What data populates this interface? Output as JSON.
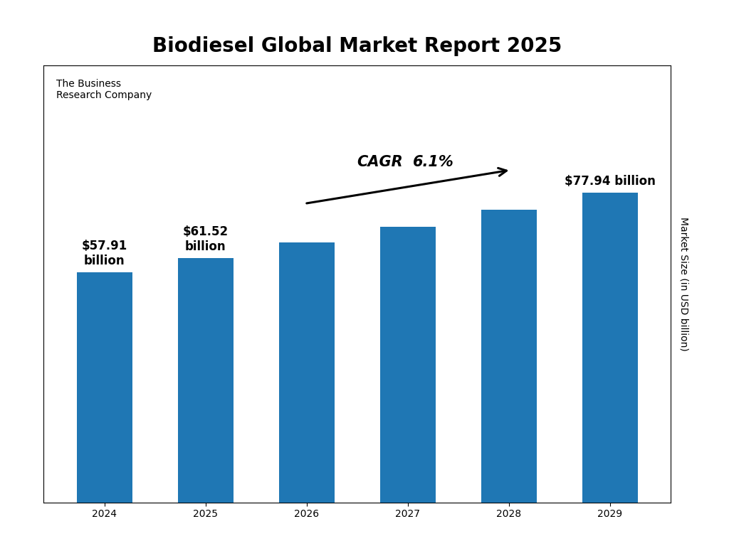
{
  "chart_data": {
    "type": "bar",
    "title": "Biodiesel Global Market Report 2025",
    "categories": [
      "2024",
      "2025",
      "2026",
      "2027",
      "2028",
      "2029"
    ],
    "values": [
      57.91,
      61.52,
      65.36,
      69.41,
      73.67,
      77.94
    ],
    "data_labels": true,
    "value_labels": [
      "$57.91\nbillion",
      "$61.52\nbillion",
      null,
      null,
      null,
      "$77.94 billion"
    ],
    "ylabel": "Market Size (in USD billion)",
    "ylim": [
      0,
      110
    ],
    "tick_labels": "x",
    "annotations": [
      "CAGR",
      "6.1%",
      "The Business\nResearch Company"
    ]
  }
}
